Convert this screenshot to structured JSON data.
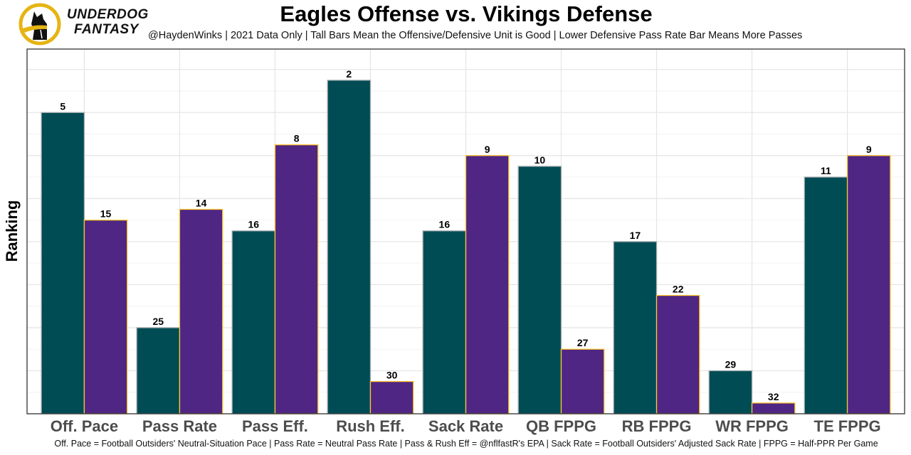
{
  "header": {
    "brand_line1": "UNDERDOG",
    "brand_line2": "FANTASY",
    "logo_icon": "underdog-dog-logo-icon"
  },
  "chart_data": {
    "type": "bar",
    "title": "Eagles Offense vs. Vikings Defense",
    "subtitle": "@HaydenWinks | 2021 Data Only | Tall Bars Mean the Offensive/Defensive Unit is Good | Lower Defensive Pass Rate Bar Means More Passes",
    "caption": "Off. Pace = Football Outsiders' Neutral-Situation Pace | Pass Rate = Neutral Pass Rate | Pass & Rush Eff = @nflfastR's EPA | Sack Rate = Football Outsiders' Adjusted Sack Rate | FPPG = Half-PPR Per Game",
    "xlabel": "",
    "ylabel": "Ranking",
    "bar_height_rule": "height = 33 - rank (rank 1 tallest)",
    "ylim": [
      0,
      33.9
    ],
    "grid": true,
    "legend": "none",
    "categories": [
      "Off. Pace",
      "Pass Rate",
      "Pass Eff.",
      "Rush Eff.",
      "Sack Rate",
      "QB FPPG",
      "RB FPPG",
      "WR FPPG",
      "TE FPPG"
    ],
    "series": [
      {
        "name": "Eagles Offense",
        "color": "#004C54",
        "border": "#A5ACAF",
        "values": [
          5,
          25,
          16,
          2,
          16,
          10,
          17,
          29,
          11
        ]
      },
      {
        "name": "Vikings Defense",
        "color": "#4F2683",
        "border": "#FFC62F",
        "values": [
          15,
          14,
          8,
          30,
          9,
          27,
          22,
          32,
          9
        ]
      }
    ]
  }
}
